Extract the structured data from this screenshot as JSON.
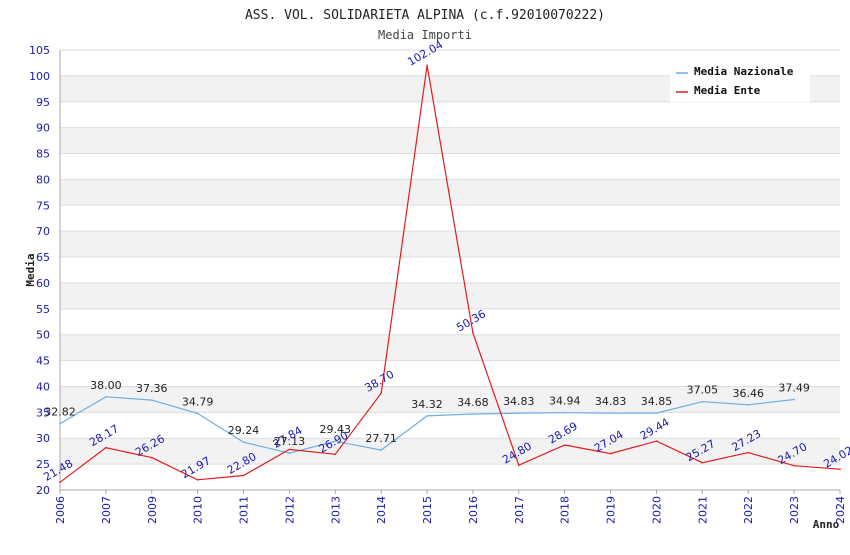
{
  "chart_data": {
    "type": "line",
    "title": "ASS. VOL. SOLIDARIETA ALPINA (c.f.92010070222)",
    "subtitle": "Media Importi",
    "xlabel": "Anno",
    "ylabel": "Media",
    "ylim": [
      20,
      105
    ],
    "yticks": [
      20,
      25,
      30,
      35,
      40,
      45,
      50,
      55,
      60,
      65,
      70,
      75,
      80,
      85,
      90,
      95,
      100,
      105
    ],
    "grid": true,
    "legend_position": "top-right",
    "categories": [
      "2006",
      "2007",
      "2009",
      "2010",
      "2011",
      "2012",
      "2013",
      "2014",
      "2015",
      "2016",
      "2017",
      "2018",
      "2019",
      "2020",
      "2021",
      "2022",
      "2023",
      "2024"
    ],
    "series": [
      {
        "name": "Media Nazionale",
        "color": "#6aaee6",
        "values": [
          32.82,
          38.0,
          37.36,
          34.79,
          29.24,
          27.13,
          29.43,
          27.71,
          34.32,
          34.68,
          34.83,
          34.94,
          34.83,
          34.85,
          37.05,
          36.46,
          37.49,
          null
        ],
        "labels": [
          "32.82",
          "38.00",
          "37.36",
          "34.79",
          "29.24",
          "27.13",
          "29.43",
          "27.71",
          "34.32",
          "34.68",
          "34.83",
          "34.94",
          "34.83",
          "34.85",
          "37.05",
          "36.46",
          "37.49",
          ""
        ]
      },
      {
        "name": "Media Ente",
        "color": "#e41a1c",
        "values": [
          21.48,
          28.17,
          26.26,
          21.97,
          22.8,
          27.84,
          26.9,
          38.7,
          102.04,
          50.36,
          24.8,
          28.69,
          27.04,
          29.44,
          25.27,
          27.23,
          24.7,
          24.02
        ],
        "labels": [
          "21.48",
          "28.17",
          "26.26",
          "21.97",
          "22.80",
          "27.84",
          "26.90",
          "38.70",
          "102.04",
          "50.36",
          "24.80",
          "28.69",
          "27.04",
          "29.44",
          "25.27",
          "27.23",
          "24.70",
          "24.02"
        ]
      }
    ]
  }
}
